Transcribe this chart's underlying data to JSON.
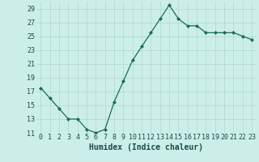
{
  "x": [
    0,
    1,
    2,
    3,
    4,
    5,
    6,
    7,
    8,
    9,
    10,
    11,
    12,
    13,
    14,
    15,
    16,
    17,
    18,
    19,
    20,
    21,
    22,
    23
  ],
  "y": [
    17.5,
    16.0,
    14.5,
    13.0,
    13.0,
    11.5,
    11.0,
    11.5,
    15.5,
    18.5,
    21.5,
    23.5,
    25.5,
    27.5,
    29.5,
    27.5,
    26.5,
    26.5,
    25.5,
    25.5,
    25.5,
    25.5,
    25.0,
    24.5
  ],
  "xlabel": "Humidex (Indice chaleur)",
  "ylim": [
    11,
    30
  ],
  "yticks": [
    11,
    13,
    15,
    17,
    19,
    21,
    23,
    25,
    27,
    29
  ],
  "xticks": [
    0,
    1,
    2,
    3,
    4,
    5,
    6,
    7,
    8,
    9,
    10,
    11,
    12,
    13,
    14,
    15,
    16,
    17,
    18,
    19,
    20,
    21,
    22,
    23
  ],
  "line_color": "#1a6b5a",
  "marker": "D",
  "marker_size": 2.0,
  "bg_color": "#cceee8",
  "grid_color": "#b0d8d0",
  "text_color": "#1a4a4a",
  "xlabel_fontsize": 7.0,
  "tick_fontsize": 6.0
}
